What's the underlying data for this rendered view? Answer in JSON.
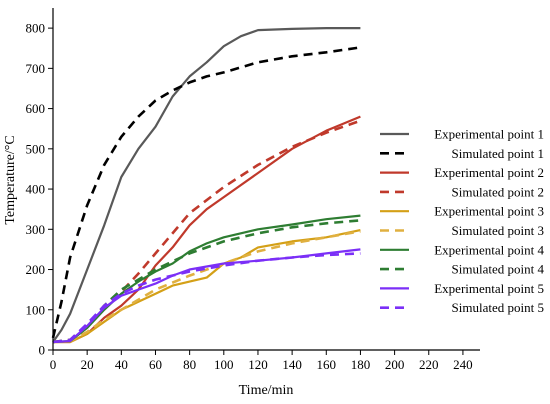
{
  "chart_data": {
    "type": "line",
    "title": "",
    "xlabel": "Time/min",
    "ylabel": "Temperature/°C",
    "xlim": [
      0,
      250
    ],
    "ylim": [
      0,
      850
    ],
    "xticks": [
      0,
      20,
      40,
      60,
      80,
      100,
      120,
      140,
      160,
      180,
      200,
      220,
      240
    ],
    "yticks": [
      0,
      100,
      200,
      300,
      400,
      500,
      600,
      700,
      800
    ],
    "grid": false,
    "legend_position": "right",
    "series": [
      {
        "name": "Experimental point 1",
        "color": "#595959",
        "style": "solid",
        "x": [
          0,
          5,
          10,
          20,
          30,
          40,
          50,
          60,
          70,
          80,
          90,
          100,
          110,
          120,
          140,
          160,
          180
        ],
        "y": [
          20,
          50,
          90,
          200,
          310,
          430,
          500,
          555,
          630,
          680,
          715,
          755,
          780,
          795,
          798,
          800,
          800
        ]
      },
      {
        "name": "Simulated point 1",
        "color": "#000000",
        "style": "dashed",
        "x": [
          0,
          5,
          10,
          20,
          30,
          40,
          50,
          60,
          70,
          80,
          90,
          100,
          120,
          140,
          160,
          180
        ],
        "y": [
          30,
          120,
          230,
          360,
          460,
          530,
          580,
          620,
          645,
          665,
          680,
          690,
          715,
          730,
          740,
          752
        ]
      },
      {
        "name": "Experimental point 2",
        "color": "#c0392b",
        "style": "solid",
        "x": [
          0,
          10,
          20,
          30,
          40,
          50,
          60,
          70,
          80,
          90,
          100,
          120,
          140,
          160,
          180
        ],
        "y": [
          20,
          20,
          40,
          80,
          110,
          150,
          210,
          255,
          310,
          350,
          380,
          440,
          500,
          545,
          580
        ]
      },
      {
        "name": "Simulated point 2",
        "color": "#c0392b",
        "style": "dashed",
        "x": [
          0,
          10,
          20,
          30,
          40,
          50,
          60,
          80,
          100,
          120,
          140,
          160,
          180
        ],
        "y": [
          20,
          25,
          60,
          110,
          145,
          190,
          240,
          340,
          405,
          460,
          505,
          540,
          570
        ]
      },
      {
        "name": "Experimental point 3",
        "color": "#d4a017",
        "style": "solid",
        "x": [
          0,
          10,
          20,
          30,
          40,
          50,
          60,
          70,
          80,
          90,
          100,
          110,
          120,
          140,
          160,
          180
        ],
        "y": [
          20,
          20,
          40,
          70,
          100,
          120,
          140,
          160,
          170,
          180,
          215,
          230,
          255,
          270,
          280,
          298
        ]
      },
      {
        "name": "Simulated point 3",
        "color": "#e0b040",
        "style": "dashed",
        "x": [
          0,
          10,
          20,
          30,
          40,
          50,
          60,
          80,
          100,
          120,
          140,
          160,
          180
        ],
        "y": [
          20,
          22,
          45,
          75,
          100,
          125,
          150,
          185,
          215,
          245,
          265,
          280,
          295
        ]
      },
      {
        "name": "Experimental point 4",
        "color": "#2e7d32",
        "style": "solid",
        "x": [
          0,
          10,
          20,
          30,
          40,
          50,
          60,
          70,
          80,
          90,
          100,
          120,
          140,
          160,
          180
        ],
        "y": [
          20,
          22,
          55,
          100,
          140,
          170,
          195,
          215,
          245,
          265,
          280,
          300,
          312,
          325,
          334
        ]
      },
      {
        "name": "Simulated point 4",
        "color": "#2e7d32",
        "style": "dashed",
        "x": [
          0,
          10,
          20,
          30,
          40,
          50,
          60,
          80,
          100,
          120,
          140,
          160,
          180
        ],
        "y": [
          20,
          25,
          60,
          110,
          150,
          175,
          200,
          240,
          270,
          290,
          305,
          315,
          322
        ]
      },
      {
        "name": "Experimental point 5",
        "color": "#7b2ff7",
        "style": "solid",
        "x": [
          0,
          10,
          20,
          30,
          40,
          50,
          60,
          70,
          80,
          100,
          120,
          140,
          160,
          180
        ],
        "y": [
          20,
          22,
          60,
          105,
          135,
          150,
          165,
          185,
          200,
          215,
          222,
          230,
          240,
          250
        ]
      },
      {
        "name": "Simulated point 5",
        "color": "#7b2ff7",
        "style": "dashed",
        "x": [
          0,
          10,
          20,
          30,
          40,
          50,
          60,
          80,
          100,
          120,
          140,
          160,
          180
        ],
        "y": [
          20,
          25,
          65,
          110,
          140,
          160,
          175,
          195,
          210,
          222,
          230,
          236,
          240
        ]
      }
    ]
  }
}
